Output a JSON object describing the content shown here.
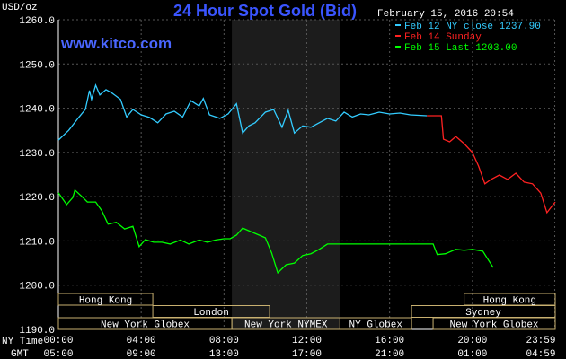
{
  "chart_data": {
    "type": "line",
    "title": "24 Hour Spot Gold (Bid)",
    "y_label": "USD/oz",
    "timestamp": "February 15, 2016 20:54",
    "watermark": "www.kitco.com",
    "x_axis_labels": [
      "NY Time",
      "GMT"
    ],
    "legend": "upper right",
    "grid": true,
    "xlim": [
      0,
      24
    ],
    "ylim": [
      1190,
      1260
    ],
    "yticks": [
      {
        "value": 1190,
        "label": "1190.0"
      },
      {
        "value": 1200,
        "label": "1200.0"
      },
      {
        "value": 1210,
        "label": "1210.0"
      },
      {
        "value": 1220,
        "label": "1220.0"
      },
      {
        "value": 1230,
        "label": "1230.0"
      },
      {
        "value": 1240,
        "label": "1240.0"
      },
      {
        "value": 1250,
        "label": "1250.0"
      },
      {
        "value": 1260,
        "label": "1260.0"
      }
    ],
    "xticks": [
      {
        "value": 0,
        "label": "00:00"
      },
      {
        "value": 4,
        "label": "04:00"
      },
      {
        "value": 8,
        "label": "08:00"
      },
      {
        "value": 12,
        "label": "12:00"
      },
      {
        "value": 16,
        "label": "16:00"
      },
      {
        "value": 20,
        "label": "20:00"
      },
      {
        "value": 23.98,
        "label": "23:59"
      }
    ],
    "xticks_gmt": [
      {
        "value": 0,
        "label": "05:00"
      },
      {
        "value": 4,
        "label": "09:00"
      },
      {
        "value": 8,
        "label": "13:00"
      },
      {
        "value": 12,
        "label": "17:00"
      },
      {
        "value": 16,
        "label": "21:00"
      },
      {
        "value": 20,
        "label": "01:00"
      },
      {
        "value": 23.98,
        "label": "04:59"
      }
    ],
    "highlight": [
      8.38,
      13.6
    ],
    "sessions": [
      {
        "label": "Hong Kong",
        "row": 0,
        "start": 0,
        "end": 4.56
      },
      {
        "label": "Hong Kong",
        "row": 0,
        "start": 19.6,
        "end": 24
      },
      {
        "label": "London",
        "row": 1,
        "start": 4.56,
        "end": 10.2
      },
      {
        "label": "Sydney",
        "row": 1,
        "start": 17.06,
        "end": 24
      },
      {
        "label": "New York Globex",
        "row": 2,
        "start": 0,
        "end": 8.38
      },
      {
        "label": "New York NYMEX",
        "row": 2,
        "start": 8.38,
        "end": 13.6
      },
      {
        "label": "NY Globex",
        "row": 2,
        "start": 13.6,
        "end": 17.06
      },
      {
        "label": "New York Globex",
        "row": 2,
        "start": 18.1,
        "end": 24
      }
    ],
    "series": [
      {
        "name": "Feb 12 NY close 1237.90",
        "color": "#33ccff",
        "x": [
          0,
          0.5,
          1,
          1.3,
          1.5,
          1.6,
          1.8,
          2.0,
          2.3,
          2.6,
          3,
          3.3,
          3.6,
          4,
          4.4,
          4.8,
          5.2,
          5.6,
          6,
          6.4,
          6.8,
          7.0,
          7.3,
          7.8,
          8.2,
          8.6,
          8.9,
          9.2,
          9.5,
          10,
          10.4,
          10.8,
          11.1,
          11.4,
          11.8,
          12.2,
          12.6,
          13,
          13.4,
          13.8,
          14.2,
          14.6,
          15,
          15.5,
          16,
          16.5,
          17,
          17.8
        ],
        "values": [
          1232.8,
          1235,
          1238,
          1239.7,
          1244,
          1242,
          1245.2,
          1243,
          1244.2,
          1243.4,
          1242,
          1238,
          1239.7,
          1238.5,
          1237.9,
          1236.7,
          1238.7,
          1239.3,
          1238,
          1241.7,
          1240.5,
          1242.2,
          1238.5,
          1237.7,
          1238.7,
          1241,
          1234.4,
          1236,
          1236.7,
          1239.1,
          1239.7,
          1235.7,
          1239.5,
          1234.4,
          1236,
          1235.7,
          1236.7,
          1237.7,
          1237.1,
          1239.1,
          1238,
          1238.7,
          1238.5,
          1239.1,
          1238.7,
          1238.9,
          1238.5,
          1238.3
        ]
      },
      {
        "name": "Feb 14 Sunday",
        "color": "#ff2222",
        "x": [
          17.8,
          18.5,
          18.6,
          18.9,
          19.2,
          19.6,
          20.0,
          20.3,
          20.6,
          20.9,
          21.3,
          21.7,
          22.1,
          22.5,
          22.9,
          23.3,
          23.6,
          24
        ],
        "values": [
          1238.3,
          1238.3,
          1233,
          1232.4,
          1233.6,
          1232,
          1230,
          1226.9,
          1222.9,
          1223.9,
          1224.9,
          1223.9,
          1225.3,
          1223.3,
          1222.9,
          1220.8,
          1216.4,
          1218.8
        ]
      },
      {
        "name": "Feb 15 Last 1203.00",
        "color": "#00ff00",
        "x": [
          0,
          0.4,
          0.7,
          0.8,
          1.1,
          1.4,
          1.8,
          2.1,
          2.4,
          2.8,
          3.2,
          3.6,
          3.9,
          4.2,
          4.6,
          5,
          5.4,
          5.9,
          6.3,
          6.8,
          7.2,
          7.6,
          8,
          8.3,
          8.6,
          8.9,
          9.3,
          9.7,
          10,
          10.3,
          10.6,
          11,
          11.4,
          11.8,
          12.2,
          12.6,
          13,
          13.4,
          17.8,
          18.1,
          18.3,
          18.7,
          19.2,
          19.6,
          20.0,
          20.5,
          20.7,
          21
        ],
        "values": [
          1220.9,
          1218.2,
          1219.8,
          1221.5,
          1220.2,
          1218.8,
          1218.8,
          1216.8,
          1213.8,
          1214.2,
          1212.7,
          1213.3,
          1208.7,
          1210.3,
          1209.7,
          1209.7,
          1209.3,
          1210.2,
          1209.3,
          1210.2,
          1209.7,
          1210.2,
          1210.5,
          1210.5,
          1211.3,
          1212.9,
          1212.1,
          1211.3,
          1210.7,
          1207.3,
          1202.8,
          1204.6,
          1205,
          1206.7,
          1207.1,
          1208.1,
          1209.3,
          1209.3,
          1209.3,
          1209.3,
          1206.9,
          1207.1,
          1208.1,
          1207.9,
          1208.1,
          1207.7,
          1206.2,
          1204
        ]
      }
    ]
  }
}
